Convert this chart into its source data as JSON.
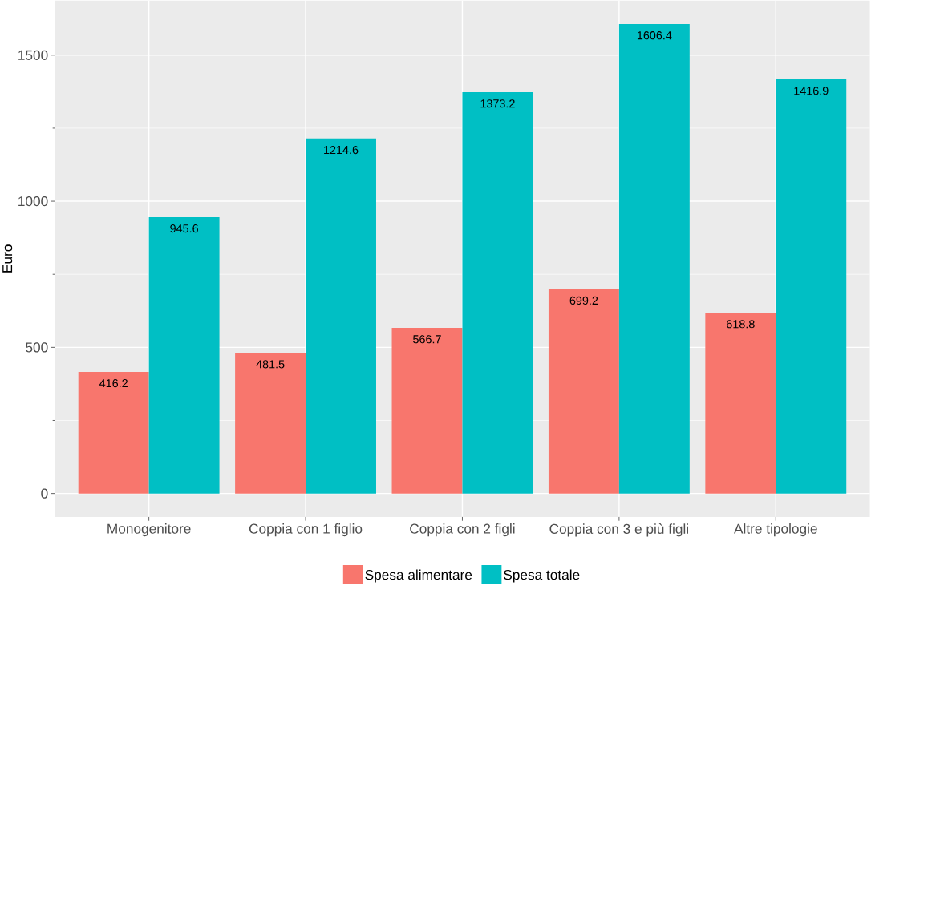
{
  "chart_data": {
    "type": "bar",
    "categories": [
      "Monogenitore",
      "Coppia con 1 figlio",
      "Coppia con 2 figli",
      "Coppia con 3 e più figli",
      "Altre tipologie"
    ],
    "ylabel": "Euro",
    "ylim": [
      -80.3,
      1686.7
    ],
    "yticks": [
      0,
      500,
      1000,
      1500
    ],
    "grid": true,
    "legend": "bottom",
    "data_labels": true,
    "series": [
      {
        "name": "Spesa alimentare",
        "color": "#f8766d",
        "values": [
          416.2,
          481.5,
          566.7,
          699.2,
          618.8
        ]
      },
      {
        "name": "Spesa totale",
        "color": "#00bfc4",
        "values": [
          945.6,
          1214.6,
          1373.2,
          1606.4,
          1416.9
        ]
      }
    ]
  }
}
